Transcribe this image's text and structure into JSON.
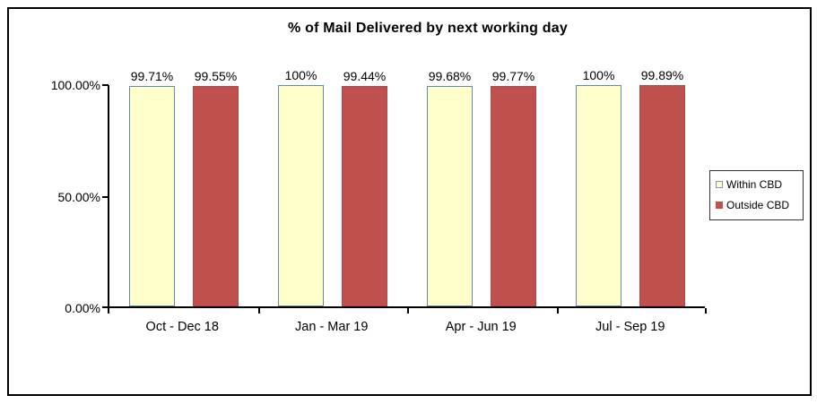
{
  "title": "% of Mail Delivered by next working day",
  "chart_data": {
    "type": "bar",
    "title": "% of Mail Delivered by next working day",
    "categories": [
      "Oct - Dec 18",
      "Jan - Mar 19",
      "Apr - Jun 19",
      "Jul - Sep 19"
    ],
    "series": [
      {
        "name": "Within CBD",
        "values": [
          99.71,
          100,
          99.68,
          100
        ],
        "labels": [
          "99.71%",
          "100%",
          "99.68%",
          "100%"
        ],
        "fill": "#FFFFCC",
        "border": "#648CA5"
      },
      {
        "name": "Outside CBD",
        "values": [
          99.55,
          99.44,
          99.77,
          99.89
        ],
        "labels": [
          "99.55%",
          "99.44%",
          "99.77%",
          "99.89%"
        ],
        "fill": "#C0504D",
        "border": "#B04946"
      }
    ],
    "xlabel": "",
    "ylabel": "",
    "ylim": [
      0,
      100
    ],
    "yticks": [
      "100.00%",
      "50.00%",
      "0.00%"
    ],
    "ytick_values": [
      100,
      50,
      0
    ],
    "grid": false,
    "legend_position": "right",
    "data_labels": true
  },
  "legend": {
    "items": [
      {
        "label": "Within CBD",
        "swatch_fill": "#FFFFCC",
        "swatch_border": "#7F94A8"
      },
      {
        "label": "Outside CBD",
        "swatch_fill": "#C0504D",
        "swatch_border": "#C0504D"
      }
    ]
  }
}
